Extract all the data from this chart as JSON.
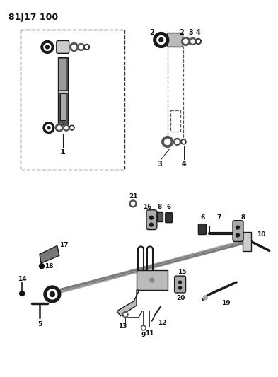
{
  "title": "81J17 100",
  "bg_color": "#ffffff",
  "lc": "#1a1a1a",
  "figsize": [
    3.93,
    5.33
  ],
  "dpi": 100
}
